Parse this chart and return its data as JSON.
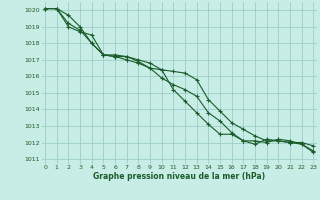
{
  "title": "Graphe pression niveau de la mer (hPa)",
  "bg_color": "#c8ece6",
  "grid_color": "#9dcfc7",
  "line_color": "#1a5c2a",
  "ylim": [
    1010.7,
    1020.5
  ],
  "xlim": [
    -0.3,
    23.3
  ],
  "yticks": [
    1011,
    1012,
    1013,
    1014,
    1015,
    1016,
    1017,
    1018,
    1019,
    1020
  ],
  "xticks": [
    0,
    1,
    2,
    3,
    4,
    5,
    6,
    7,
    8,
    9,
    10,
    11,
    12,
    13,
    14,
    15,
    16,
    17,
    18,
    19,
    20,
    21,
    22,
    23
  ],
  "series": [
    [
      1020.1,
      1020.1,
      1019.7,
      1019.0,
      1018.0,
      1017.3,
      1017.2,
      1017.2,
      1017.0,
      1016.8,
      1016.4,
      1016.3,
      1016.2,
      1015.8,
      1014.6,
      1013.9,
      1013.2,
      1012.8,
      1012.4,
      1012.1,
      1012.1,
      1012.0,
      1012.0,
      1011.8
    ],
    [
      1020.1,
      1020.1,
      1019.2,
      1018.8,
      1018.0,
      1017.3,
      1017.2,
      1017.0,
      1016.8,
      1016.5,
      1015.9,
      1015.5,
      1015.2,
      1014.8,
      1013.8,
      1013.3,
      1012.6,
      1012.1,
      1012.1,
      1012.0,
      1012.2,
      1012.1,
      1011.9,
      1011.5
    ],
    [
      1020.1,
      1020.1,
      1019.0,
      1018.7,
      1018.5,
      1017.3,
      1017.3,
      1017.2,
      1016.9,
      1016.5,
      1016.4,
      1015.2,
      1014.5,
      1013.8,
      1013.1,
      1012.5,
      1012.5,
      1012.1,
      1011.9,
      1012.2,
      1012.1,
      1012.0,
      1011.9,
      1011.4
    ]
  ]
}
